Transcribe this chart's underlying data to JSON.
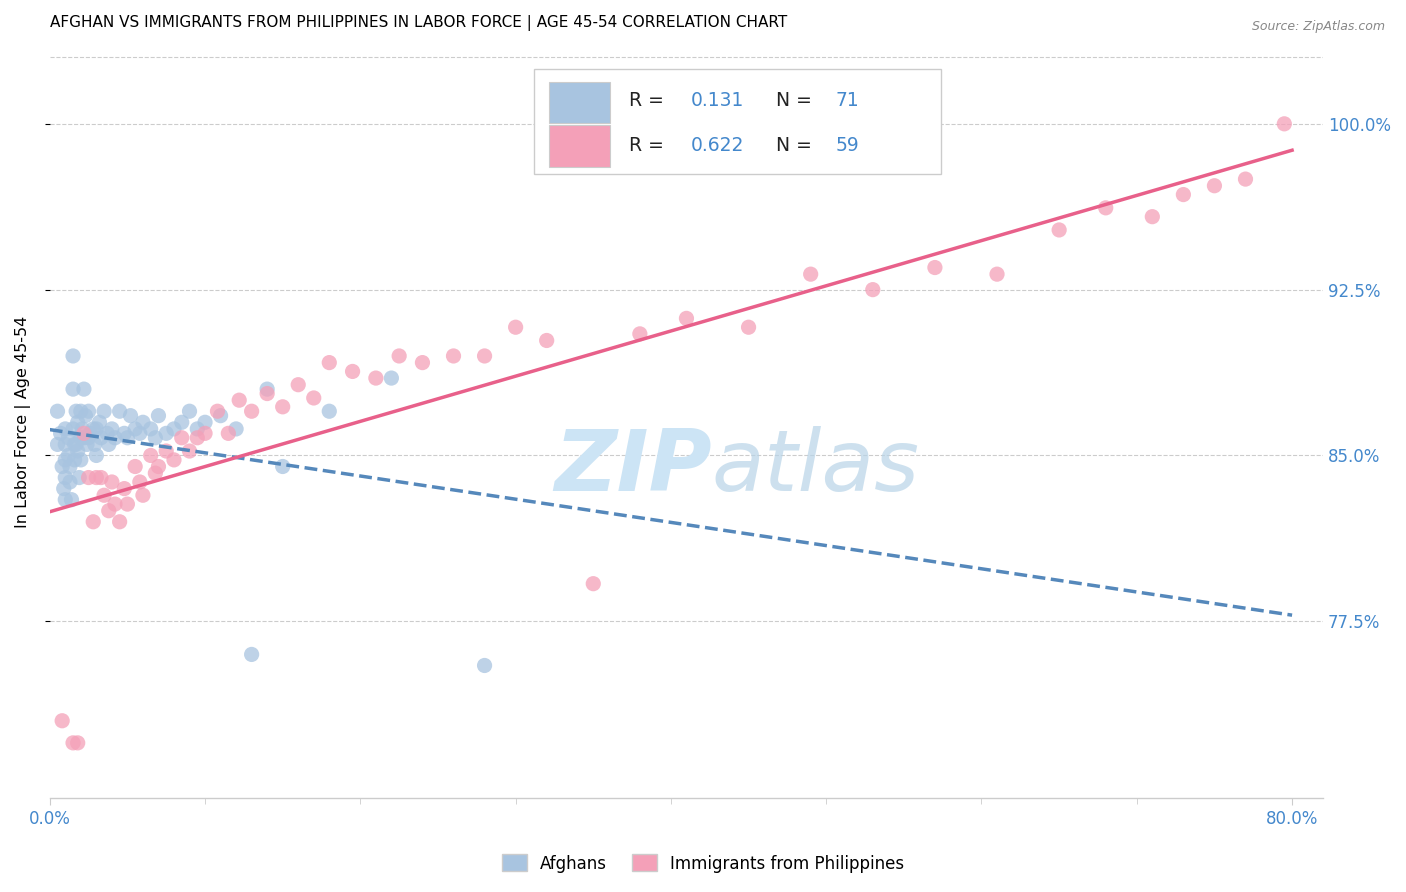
{
  "title": "AFGHAN VS IMMIGRANTS FROM PHILIPPINES IN LABOR FORCE | AGE 45-54 CORRELATION CHART",
  "source": "Source: ZipAtlas.com",
  "ylabel": "In Labor Force | Age 45-54",
  "xlim": [
    0.0,
    0.82
  ],
  "ylim": [
    0.695,
    1.035
  ],
  "yticks": [
    0.775,
    0.85,
    0.925,
    1.0
  ],
  "ytick_labels": [
    "77.5%",
    "85.0%",
    "92.5%",
    "100.0%"
  ],
  "xtick_left_label": "0.0%",
  "xtick_right_label": "80.0%",
  "xtick_left": 0.0,
  "xtick_right": 0.8,
  "afghans_R": 0.131,
  "afghans_N": 71,
  "phil_R": 0.622,
  "phil_N": 59,
  "afghans_color": "#a8c4e0",
  "phil_color": "#f4a0b8",
  "afghans_trend_color": "#5588bb",
  "phil_trend_color": "#e8608a",
  "axis_color": "#4488cc",
  "grid_color": "#cccccc",
  "watermark_color": "#cce4f5",
  "legend_box_color": "#cccccc",
  "afghans_x": [
    0.005,
    0.005,
    0.007,
    0.008,
    0.009,
    0.01,
    0.01,
    0.01,
    0.01,
    0.01,
    0.012,
    0.012,
    0.013,
    0.013,
    0.014,
    0.015,
    0.015,
    0.015,
    0.016,
    0.016,
    0.017,
    0.017,
    0.018,
    0.018,
    0.019,
    0.02,
    0.02,
    0.02,
    0.021,
    0.022,
    0.022,
    0.023,
    0.024,
    0.025,
    0.025,
    0.026,
    0.028,
    0.029,
    0.03,
    0.03,
    0.032,
    0.033,
    0.035,
    0.037,
    0.038,
    0.04,
    0.042,
    0.045,
    0.048,
    0.05,
    0.052,
    0.055,
    0.058,
    0.06,
    0.065,
    0.068,
    0.07,
    0.075,
    0.08,
    0.085,
    0.09,
    0.095,
    0.1,
    0.11,
    0.12,
    0.13,
    0.14,
    0.15,
    0.18,
    0.22,
    0.28
  ],
  "afghans_y": [
    0.87,
    0.855,
    0.86,
    0.845,
    0.835,
    0.862,
    0.855,
    0.848,
    0.84,
    0.83,
    0.858,
    0.85,
    0.845,
    0.838,
    0.83,
    0.895,
    0.88,
    0.862,
    0.855,
    0.848,
    0.87,
    0.855,
    0.865,
    0.852,
    0.84,
    0.87,
    0.858,
    0.848,
    0.862,
    0.88,
    0.858,
    0.868,
    0.855,
    0.87,
    0.858,
    0.86,
    0.862,
    0.855,
    0.862,
    0.85,
    0.865,
    0.858,
    0.87,
    0.86,
    0.855,
    0.862,
    0.858,
    0.87,
    0.86,
    0.858,
    0.868,
    0.862,
    0.86,
    0.865,
    0.862,
    0.858,
    0.868,
    0.86,
    0.862,
    0.865,
    0.87,
    0.862,
    0.865,
    0.868,
    0.862,
    0.76,
    0.88,
    0.845,
    0.87,
    0.885,
    0.755
  ],
  "phil_x": [
    0.008,
    0.015,
    0.018,
    0.022,
    0.025,
    0.028,
    0.03,
    0.033,
    0.035,
    0.038,
    0.04,
    0.042,
    0.045,
    0.048,
    0.05,
    0.055,
    0.058,
    0.06,
    0.065,
    0.068,
    0.07,
    0.075,
    0.08,
    0.085,
    0.09,
    0.095,
    0.1,
    0.108,
    0.115,
    0.122,
    0.13,
    0.14,
    0.15,
    0.16,
    0.17,
    0.18,
    0.195,
    0.21,
    0.225,
    0.24,
    0.26,
    0.28,
    0.3,
    0.32,
    0.35,
    0.38,
    0.41,
    0.45,
    0.49,
    0.53,
    0.57,
    0.61,
    0.65,
    0.68,
    0.71,
    0.73,
    0.75,
    0.77,
    0.795
  ],
  "phil_y": [
    0.73,
    0.72,
    0.72,
    0.86,
    0.84,
    0.82,
    0.84,
    0.84,
    0.832,
    0.825,
    0.838,
    0.828,
    0.82,
    0.835,
    0.828,
    0.845,
    0.838,
    0.832,
    0.85,
    0.842,
    0.845,
    0.852,
    0.848,
    0.858,
    0.852,
    0.858,
    0.86,
    0.87,
    0.86,
    0.875,
    0.87,
    0.878,
    0.872,
    0.882,
    0.876,
    0.892,
    0.888,
    0.885,
    0.895,
    0.892,
    0.895,
    0.895,
    0.908,
    0.902,
    0.792,
    0.905,
    0.912,
    0.908,
    0.932,
    0.925,
    0.935,
    0.932,
    0.952,
    0.962,
    0.958,
    0.968,
    0.972,
    0.975,
    1.0
  ]
}
